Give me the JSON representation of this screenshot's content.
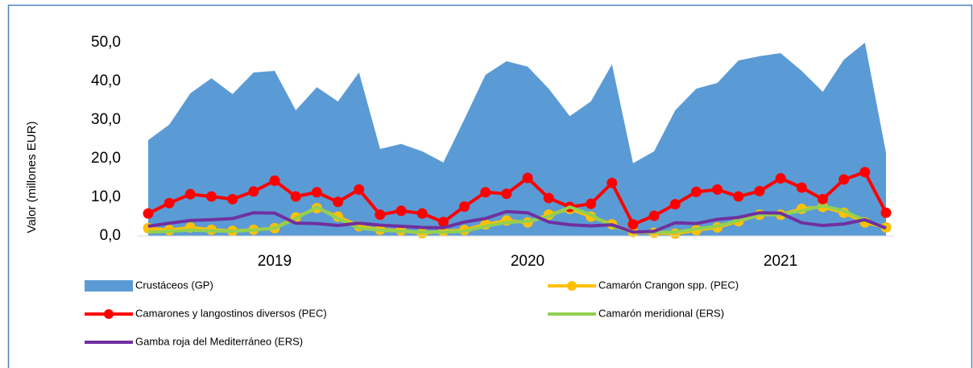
{
  "chart_data": {
    "type": "line",
    "y_label": "Valor (millones EUR)",
    "groups": [
      "2019",
      "2020",
      "2021"
    ],
    "ylim": [
      0,
      50
    ],
    "yticks": [
      {
        "value": 0,
        "label": "0,0"
      },
      {
        "value": 10,
        "label": "10,0"
      },
      {
        "value": 20,
        "label": "20,0"
      },
      {
        "value": 30,
        "label": "30,0"
      },
      {
        "value": 40,
        "label": "40,0"
      },
      {
        "value": 50,
        "label": "50,0"
      }
    ],
    "grid": false,
    "series": [
      {
        "name": "Crustáceos (GP)",
        "type": "area",
        "color": "#5b9bd5",
        "values": [
          24.8,
          28.8,
          36.9,
          40.8,
          36.7,
          42.3,
          42.7,
          32.5,
          38.5,
          34.8,
          42.3,
          22.5,
          23.8,
          21.9,
          19.0,
          30.2,
          41.7,
          45.2,
          43.8,
          38.1,
          31.0,
          34.8,
          44.4,
          18.8,
          21.9,
          32.5,
          38.1,
          39.6,
          45.4,
          46.5,
          47.3,
          42.7,
          37.3,
          45.6,
          50.0,
          21.5
        ]
      },
      {
        "name": "Camarón Crangon spp. (PEC)",
        "type": "line",
        "marker": true,
        "color": "#ffc000",
        "values": [
          2.0,
          1.5,
          2.2,
          1.6,
          1.3,
          1.6,
          2.0,
          4.8,
          7.2,
          5.0,
          2.5,
          1.6,
          1.4,
          0.7,
          1.2,
          1.5,
          3.0,
          4.0,
          3.5,
          5.5,
          7.0,
          5.0,
          3.0,
          1.0,
          0.8,
          0.6,
          1.5,
          2.2,
          3.8,
          5.5,
          5.5,
          7.0,
          7.5,
          6.0,
          3.5,
          2.2
        ]
      },
      {
        "name": "Camarones y langostinos diversos (PEC)",
        "type": "line",
        "marker": true,
        "color": "#ff0000",
        "values": [
          5.8,
          8.5,
          10.8,
          10.2,
          9.5,
          11.5,
          14.3,
          10.2,
          11.3,
          8.8,
          12.0,
          5.5,
          6.5,
          5.8,
          3.6,
          7.6,
          11.3,
          10.9,
          15.0,
          9.8,
          7.5,
          8.3,
          13.7,
          3.0,
          5.2,
          8.2,
          11.4,
          12.0,
          10.2,
          11.6,
          14.9,
          12.5,
          9.5,
          14.6,
          16.5,
          6.0
        ]
      },
      {
        "name": "Camarón meridional (ERS)",
        "type": "line",
        "marker": false,
        "color": "#92d050",
        "values": [
          1.0,
          1.2,
          1.5,
          1.3,
          1.2,
          1.5,
          2.0,
          4.5,
          7.5,
          4.5,
          2.0,
          1.5,
          1.2,
          1.0,
          1.0,
          1.2,
          2.5,
          3.5,
          3.8,
          5.0,
          7.5,
          5.5,
          2.5,
          1.0,
          0.9,
          1.0,
          1.8,
          2.5,
          4.0,
          5.5,
          5.5,
          6.5,
          7.8,
          6.5,
          4.0,
          2.2
        ]
      },
      {
        "name": "Gamba roja del Mediterráneo (ERS)",
        "type": "line",
        "marker": false,
        "color": "#7030a0",
        "values": [
          2.5,
          3.3,
          4.0,
          4.2,
          4.5,
          6.0,
          5.9,
          3.3,
          3.2,
          2.7,
          3.3,
          2.8,
          2.5,
          2.2,
          2.1,
          3.6,
          4.5,
          6.3,
          6.0,
          3.6,
          2.9,
          2.6,
          2.9,
          1.0,
          1.2,
          3.4,
          3.2,
          4.3,
          4.8,
          6.0,
          5.9,
          3.4,
          2.7,
          3.1,
          4.2,
          2.0
        ]
      }
    ]
  }
}
